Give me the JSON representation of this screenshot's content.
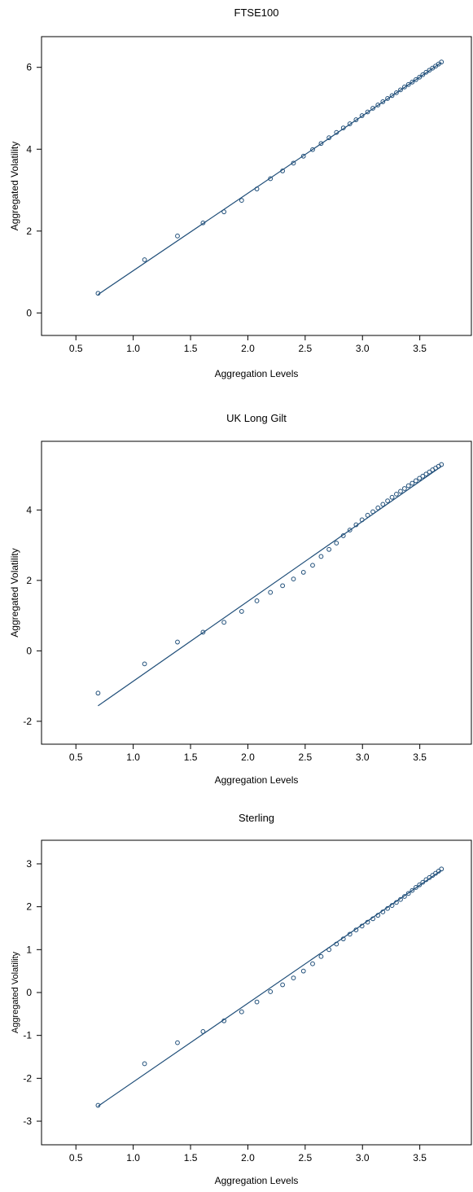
{
  "colors": {
    "series": "#1f4e79",
    "axis": "#000000",
    "background": "#ffffff"
  },
  "chart_data": [
    {
      "type": "scatter",
      "title": "FTSE100",
      "xlabel": "Aggregation Levels",
      "ylabel": "Aggregated Volatility",
      "xlim": [
        0.2,
        3.95
      ],
      "ylim": [
        -0.55,
        6.75
      ],
      "xticks": [
        0.5,
        1.0,
        1.5,
        2.0,
        2.5,
        3.0,
        3.5
      ],
      "xtick_labels": [
        "0.5",
        "1.0",
        "1.5",
        "2.0",
        "2.5",
        "3.0",
        "3.5"
      ],
      "yticks": [
        0,
        2,
        4,
        6
      ],
      "ytick_labels": [
        "0",
        "2",
        "4",
        "6"
      ],
      "grid": false,
      "x": [
        0.693,
        1.099,
        1.386,
        1.609,
        1.792,
        1.946,
        2.079,
        2.197,
        2.303,
        2.398,
        2.485,
        2.565,
        2.639,
        2.708,
        2.773,
        2.833,
        2.89,
        2.944,
        2.996,
        3.045,
        3.091,
        3.135,
        3.178,
        3.219,
        3.258,
        3.296,
        3.332,
        3.367,
        3.401,
        3.434,
        3.466,
        3.497,
        3.526,
        3.555,
        3.584,
        3.611,
        3.638,
        3.664,
        3.689
      ],
      "y": [
        0.48,
        1.3,
        1.88,
        2.2,
        2.47,
        2.75,
        3.03,
        3.28,
        3.47,
        3.66,
        3.83,
        3.99,
        4.14,
        4.28,
        4.41,
        4.52,
        4.62,
        4.72,
        4.82,
        4.91,
        5.0,
        5.08,
        5.16,
        5.24,
        5.31,
        5.38,
        5.45,
        5.52,
        5.58,
        5.64,
        5.7,
        5.76,
        5.82,
        5.88,
        5.93,
        5.98,
        6.03,
        6.08,
        6.13
      ],
      "fit_line": {
        "x": [
          0.693,
          3.689
        ],
        "y": [
          0.45,
          6.12
        ]
      }
    },
    {
      "type": "scatter",
      "title": "UK Long Gilt",
      "xlabel": "Aggregation Levels",
      "ylabel": "Aggregated Volatility",
      "xlim": [
        0.2,
        3.95
      ],
      "ylim": [
        -2.65,
        5.95
      ],
      "xticks": [
        0.5,
        1.0,
        1.5,
        2.0,
        2.5,
        3.0,
        3.5
      ],
      "xtick_labels": [
        "0.5",
        "1.0",
        "1.5",
        "2.0",
        "2.5",
        "3.0",
        "3.5"
      ],
      "yticks": [
        -2,
        0,
        2,
        4
      ],
      "ytick_labels": [
        "-2",
        "0",
        "2",
        "4"
      ],
      "grid": false,
      "x": [
        0.693,
        1.099,
        1.386,
        1.609,
        1.792,
        1.946,
        2.079,
        2.197,
        2.303,
        2.398,
        2.485,
        2.565,
        2.639,
        2.708,
        2.773,
        2.833,
        2.89,
        2.944,
        2.996,
        3.045,
        3.091,
        3.135,
        3.178,
        3.219,
        3.258,
        3.296,
        3.332,
        3.367,
        3.401,
        3.434,
        3.466,
        3.497,
        3.526,
        3.555,
        3.584,
        3.611,
        3.638,
        3.664,
        3.689
      ],
      "y": [
        -1.2,
        -0.37,
        0.25,
        0.53,
        0.81,
        1.12,
        1.42,
        1.66,
        1.85,
        2.04,
        2.23,
        2.43,
        2.68,
        2.88,
        3.06,
        3.27,
        3.43,
        3.58,
        3.72,
        3.85,
        3.95,
        4.06,
        4.16,
        4.26,
        4.36,
        4.45,
        4.53,
        4.61,
        4.69,
        4.76,
        4.83,
        4.9,
        4.96,
        5.02,
        5.08,
        5.14,
        5.19,
        5.24,
        5.29
      ],
      "fit_line": {
        "x": [
          0.693,
          3.689
        ],
        "y": [
          -1.56,
          5.24
        ]
      }
    },
    {
      "type": "scatter",
      "title": "Sterling",
      "xlabel": "Aggregation Levels",
      "ylabel": "Aggregated Volatility",
      "xlim": [
        0.2,
        3.95
      ],
      "ylim": [
        -3.55,
        3.55
      ],
      "xticks": [
        0.5,
        1.0,
        1.5,
        2.0,
        2.5,
        3.0,
        3.5
      ],
      "xtick_labels": [
        "0.5",
        "1.0",
        "1.5",
        "2.0",
        "2.5",
        "3.0",
        "3.5"
      ],
      "yticks": [
        -3,
        -2,
        -1,
        0,
        1,
        2,
        3
      ],
      "ytick_labels": [
        "-3",
        "-2",
        "-1",
        "0",
        "1",
        "2",
        "3"
      ],
      "grid": false,
      "x": [
        0.693,
        1.099,
        1.386,
        1.609,
        1.792,
        1.946,
        2.079,
        2.197,
        2.303,
        2.398,
        2.485,
        2.565,
        2.639,
        2.708,
        2.773,
        2.833,
        2.89,
        2.944,
        2.996,
        3.045,
        3.091,
        3.135,
        3.178,
        3.219,
        3.258,
        3.296,
        3.332,
        3.367,
        3.401,
        3.434,
        3.466,
        3.497,
        3.526,
        3.555,
        3.584,
        3.611,
        3.638,
        3.664,
        3.689
      ],
      "y": [
        -2.63,
        -1.66,
        -1.17,
        -0.91,
        -0.66,
        -0.45,
        -0.22,
        0.02,
        0.18,
        0.34,
        0.5,
        0.67,
        0.84,
        1.0,
        1.13,
        1.25,
        1.36,
        1.46,
        1.55,
        1.64,
        1.72,
        1.8,
        1.88,
        1.96,
        2.03,
        2.1,
        2.17,
        2.24,
        2.31,
        2.38,
        2.45,
        2.51,
        2.57,
        2.63,
        2.68,
        2.73,
        2.78,
        2.83,
        2.88
      ],
      "fit_line": {
        "x": [
          0.693,
          3.689
        ],
        "y": [
          -2.65,
          2.85
        ]
      }
    }
  ]
}
